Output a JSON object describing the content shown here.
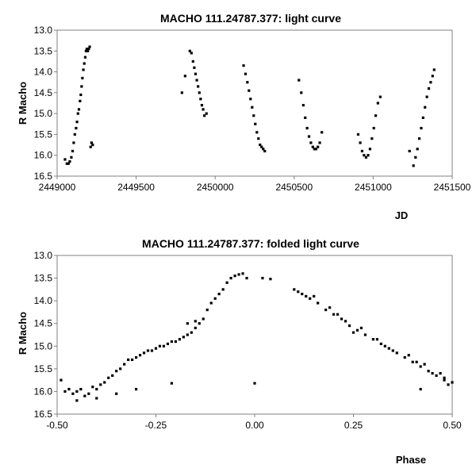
{
  "chart_data": [
    {
      "type": "scatter",
      "title": "MACHO 111.24787.377: light curve",
      "xlabel": "JD",
      "ylabel": "R Macho",
      "xlim": [
        2449000,
        2451500
      ],
      "ylim": [
        13.0,
        16.5
      ],
      "y_inverted": true,
      "grid": false,
      "x_ticks": [
        "2449000",
        "2449500",
        "2450000",
        "2450500",
        "2451000",
        "2451500"
      ],
      "y_ticks": [
        "13.0",
        "13.5",
        "14.0",
        "14.5",
        "15.0",
        "15.5",
        "16.0",
        "16.5"
      ],
      "marker_color": "#000000",
      "series": [
        {
          "x": [
            2449050,
            2449062,
            2449072,
            2449080,
            2449090,
            2449098,
            2449105,
            2449112,
            2449120,
            2449126,
            2449132,
            2449138,
            2449145,
            2449150,
            2449155,
            2449160,
            2449166,
            2449172,
            2449178,
            2449183,
            2449188,
            2449194,
            2449200,
            2449206,
            2449212,
            2449218,
            2449225,
            2449790,
            2449810,
            2449840,
            2449850,
            2449860,
            2449868,
            2449876,
            2449884,
            2449892,
            2449900,
            2449908,
            2449916,
            2449924,
            2449932,
            2449945,
            2450180,
            2450192,
            2450204,
            2450214,
            2450224,
            2450234,
            2450244,
            2450254,
            2450264,
            2450274,
            2450284,
            2450294,
            2450304,
            2450314,
            2450530,
            2450545,
            2450558,
            2450570,
            2450582,
            2450594,
            2450606,
            2450618,
            2450628,
            2450638,
            2450650,
            2450662,
            2450675,
            2450905,
            2450918,
            2450930,
            2450942,
            2450955,
            2450968,
            2450980,
            2450992,
            2451004,
            2451016,
            2451030,
            2451045,
            2451230,
            2451255,
            2451268,
            2451280,
            2451292,
            2451304,
            2451316,
            2451328,
            2451340,
            2451352,
            2451364,
            2451376,
            2451386
          ],
          "y": [
            16.1,
            16.2,
            16.2,
            16.15,
            16.05,
            15.9,
            15.7,
            15.5,
            15.35,
            15.2,
            15.0,
            14.9,
            14.7,
            14.55,
            14.35,
            14.15,
            13.95,
            13.8,
            13.65,
            13.5,
            13.45,
            13.5,
            13.45,
            13.4,
            15.8,
            15.7,
            15.75,
            14.5,
            14.1,
            13.5,
            13.55,
            13.75,
            13.9,
            14.05,
            14.2,
            14.35,
            14.5,
            14.65,
            14.8,
            14.9,
            15.05,
            15.0,
            13.85,
            14.05,
            14.25,
            14.45,
            14.65,
            14.85,
            15.05,
            15.25,
            15.45,
            15.6,
            15.75,
            15.8,
            15.85,
            15.9,
            14.2,
            14.5,
            14.8,
            15.1,
            15.35,
            15.55,
            15.7,
            15.8,
            15.85,
            15.85,
            15.8,
            15.7,
            15.45,
            15.5,
            15.7,
            15.9,
            16.0,
            16.05,
            16.0,
            15.85,
            15.6,
            15.35,
            15.05,
            14.75,
            14.6,
            15.9,
            16.25,
            16.05,
            15.85,
            15.6,
            15.35,
            15.1,
            14.85,
            14.6,
            14.4,
            14.25,
            14.1,
            13.95
          ]
        }
      ]
    },
    {
      "type": "scatter",
      "title": "MACHO 111.24787.377: folded light curve",
      "xlabel": "Phase",
      "ylabel": "R Macho",
      "xlim": [
        -0.5,
        0.5
      ],
      "ylim": [
        13.0,
        16.5
      ],
      "y_inverted": true,
      "grid": false,
      "x_ticks": [
        "-0.50",
        "-0.25",
        "0.00",
        "0.25",
        "0.50"
      ],
      "y_ticks": [
        "13.0",
        "13.5",
        "14.0",
        "14.5",
        "15.0",
        "15.5",
        "16.0",
        "16.5"
      ],
      "marker_color": "#000000",
      "series": [
        {
          "x": [
            -0.49,
            -0.48,
            -0.47,
            -0.46,
            -0.45,
            -0.44,
            -0.43,
            -0.42,
            -0.41,
            -0.4,
            -0.39,
            -0.38,
            -0.37,
            -0.36,
            -0.35,
            -0.34,
            -0.33,
            -0.32,
            -0.31,
            -0.3,
            -0.29,
            -0.28,
            -0.27,
            -0.26,
            -0.25,
            -0.24,
            -0.23,
            -0.22,
            -0.21,
            -0.2,
            -0.19,
            -0.18,
            -0.17,
            -0.16,
            -0.15,
            -0.14,
            -0.13,
            -0.12,
            -0.11,
            -0.1,
            -0.09,
            -0.08,
            -0.07,
            -0.06,
            -0.05,
            -0.04,
            -0.03,
            -0.02,
            -0.21,
            0.0,
            0.02,
            0.04,
            -0.15,
            -0.17,
            -0.45,
            -0.4,
            -0.35,
            -0.3,
            0.1,
            0.12,
            0.14,
            0.16,
            0.18,
            0.2,
            0.22,
            0.24,
            0.26,
            0.28,
            0.3,
            0.32,
            0.34,
            0.36,
            0.38,
            0.4,
            0.42,
            0.44,
            0.46,
            0.48,
            0.5,
            0.11,
            0.15,
            0.19,
            0.23,
            0.27,
            0.31,
            0.35,
            0.39,
            0.43,
            0.47,
            0.13,
            0.21,
            0.25,
            0.33,
            0.41,
            0.45,
            0.49,
            0.48,
            0.42
          ],
          "y": [
            15.75,
            16.0,
            15.95,
            16.05,
            16.0,
            15.95,
            16.1,
            16.05,
            15.9,
            15.95,
            15.85,
            15.8,
            15.7,
            15.65,
            15.55,
            15.5,
            15.4,
            15.3,
            15.3,
            15.25,
            15.2,
            15.15,
            15.1,
            15.1,
            15.05,
            15.0,
            15.0,
            14.95,
            14.9,
            14.9,
            14.85,
            14.8,
            14.75,
            14.7,
            14.6,
            14.5,
            14.4,
            14.2,
            14.05,
            13.95,
            13.85,
            13.75,
            13.6,
            13.5,
            13.45,
            13.42,
            13.4,
            13.5,
            15.82,
            15.82,
            13.5,
            13.52,
            14.45,
            14.5,
            16.2,
            16.15,
            16.05,
            15.95,
            13.75,
            13.85,
            13.95,
            14.05,
            14.2,
            14.3,
            14.4,
            14.55,
            14.65,
            14.75,
            14.85,
            14.95,
            15.05,
            15.15,
            15.25,
            15.35,
            15.45,
            15.55,
            15.65,
            15.75,
            15.8,
            13.8,
            13.9,
            14.15,
            14.45,
            14.6,
            14.85,
            15.1,
            15.2,
            15.4,
            15.6,
            13.9,
            14.3,
            14.7,
            15.0,
            15.35,
            15.6,
            15.85,
            15.7,
            15.95
          ]
        }
      ]
    }
  ]
}
